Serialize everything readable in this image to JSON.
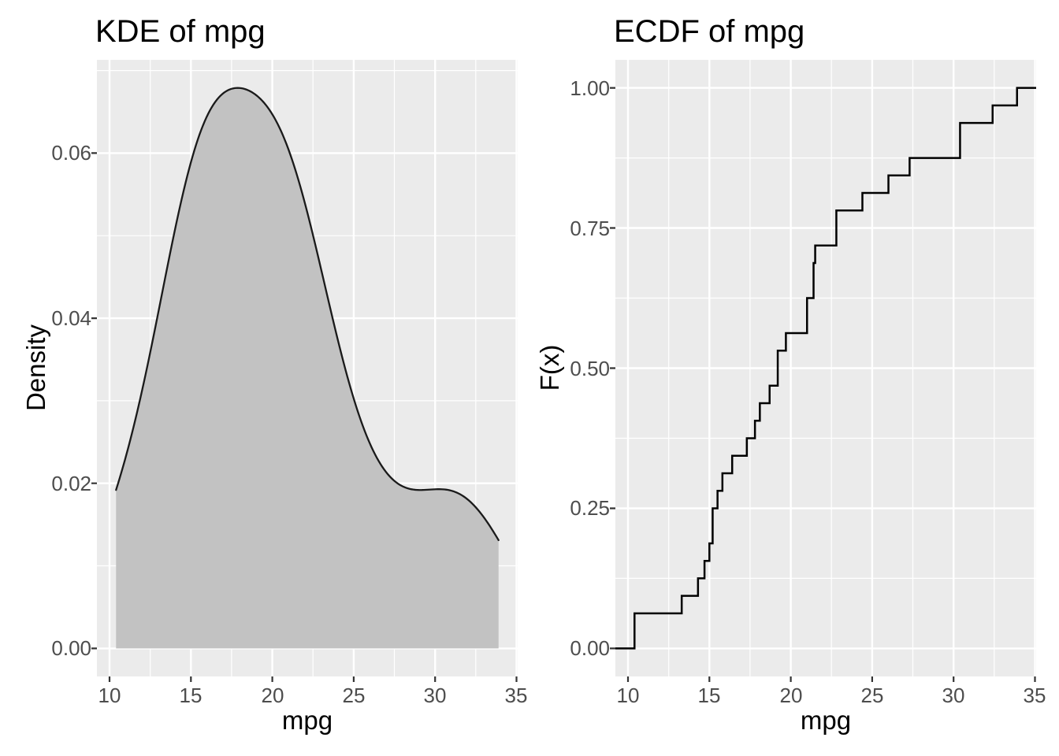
{
  "figure": {
    "background": "#FFFFFF",
    "panel_background": "#EBEBEB",
    "grid_color": "#FFFFFF",
    "axis_tick_color": "#333333",
    "tick_label_color": "#4D4D4D",
    "title_color": "#000000"
  },
  "plots": {
    "left": {
      "title": "KDE of mpg",
      "xlabel": "mpg",
      "ylabel": "Density",
      "x_tick_labels": [
        "10",
        "15",
        "20",
        "25",
        "30",
        "35"
      ],
      "y_tick_labels": [
        "0.00",
        "0.02",
        "0.04",
        "0.06"
      ]
    },
    "right": {
      "title": "ECDF of mpg",
      "xlabel": "mpg",
      "ylabel": "F(x)",
      "x_tick_labels": [
        "10",
        "15",
        "20",
        "25",
        "30",
        "35"
      ],
      "y_tick_labels": [
        "0.00",
        "0.25",
        "0.50",
        "0.75",
        "1.00"
      ]
    }
  },
  "chart_data": [
    {
      "type": "area",
      "variant": "kde",
      "title": "KDE of mpg",
      "xlabel": "mpg",
      "ylabel": "Density",
      "grid": true,
      "legend_position": "none",
      "xlim": [
        9.225,
        35.075
      ],
      "ylim": [
        -0.0034,
        0.0713
      ],
      "x_ticks": [
        10,
        15,
        20,
        25,
        30,
        35
      ],
      "x_minor": [
        12.5,
        17.5,
        22.5,
        27.5,
        32.5
      ],
      "y_ticks": [
        0,
        0.02,
        0.04,
        0.06
      ],
      "y_minor": [
        0.01,
        0.03,
        0.05,
        0.07
      ],
      "kde_sample": [
        10.4,
        10.4,
        13.3,
        14.3,
        14.7,
        15.0,
        15.2,
        15.2,
        15.5,
        15.8,
        16.4,
        17.3,
        17.8,
        18.1,
        18.7,
        19.2,
        19.2,
        19.7,
        21.0,
        21.0,
        21.4,
        21.4,
        21.5,
        22.8,
        22.8,
        24.4,
        26.0,
        27.3,
        30.4,
        30.4,
        32.4,
        33.9
      ],
      "kde_bandwidth": 2.4766,
      "kde_range": [
        10.4,
        33.9
      ],
      "curve_anchor_points": {
        "start": [
          10.4,
          0.0192
        ],
        "peak": [
          17.9,
          0.0679
        ],
        "shoulder_min": [
          28.4,
          0.0193
        ],
        "shoulder_max": [
          30.1,
          0.0196
        ],
        "end": [
          33.9,
          0.0131
        ]
      },
      "fill_color": "#C2C2C2",
      "line_color": "#1A1A1A"
    },
    {
      "type": "line",
      "variant": "ecdf_step",
      "title": "ECDF of mpg",
      "xlabel": "mpg",
      "ylabel": "F(x)",
      "grid": true,
      "legend_position": "none",
      "xlim": [
        9.225,
        35.075
      ],
      "ylim": [
        -0.05,
        1.05
      ],
      "x_ticks": [
        10,
        15,
        20,
        25,
        30,
        35
      ],
      "x_minor": [
        12.5,
        17.5,
        22.5,
        27.5,
        32.5
      ],
      "y_ticks": [
        0,
        0.25,
        0.5,
        0.75,
        1
      ],
      "y_minor": [
        0.125,
        0.375,
        0.625,
        0.875
      ],
      "step_x": [
        10.4,
        13.3,
        14.3,
        14.7,
        15.0,
        15.2,
        15.5,
        15.8,
        16.4,
        17.3,
        17.8,
        18.1,
        18.7,
        19.2,
        19.7,
        21.0,
        21.4,
        21.5,
        22.8,
        24.4,
        26.0,
        27.3,
        30.4,
        32.4,
        33.9
      ],
      "step_F": [
        0.0625,
        0.09375,
        0.125,
        0.15625,
        0.1875,
        0.25,
        0.28125,
        0.3125,
        0.34375,
        0.375,
        0.40625,
        0.4375,
        0.46875,
        0.53125,
        0.5625,
        0.625,
        0.6875,
        0.71875,
        0.78125,
        0.8125,
        0.84375,
        0.875,
        0.9375,
        0.96875,
        1.0
      ],
      "n_observations": 32,
      "pad_to_xlim": true,
      "line_color": "#000000"
    }
  ]
}
